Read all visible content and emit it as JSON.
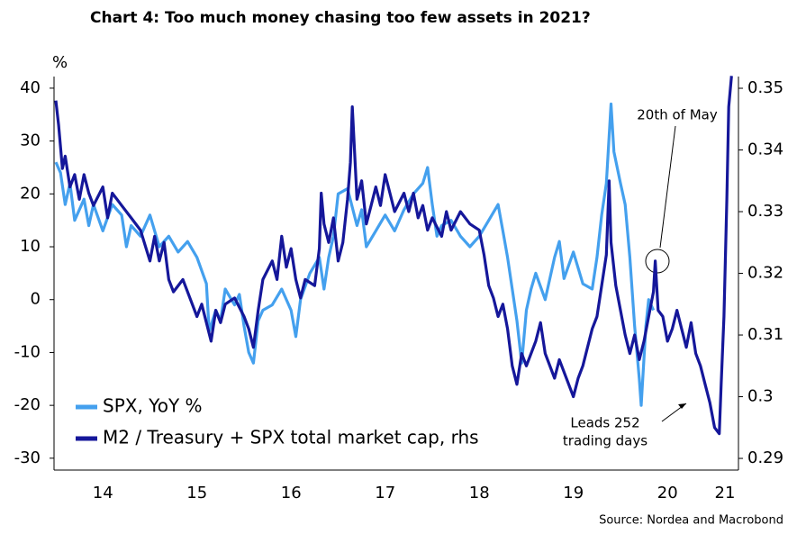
{
  "chart_data": {
    "type": "line",
    "title": "Chart 4: Too much money chasing too few assets in 2021?",
    "y_label": "%",
    "source": "Source: Nordea and Macrobond",
    "annotations": [
      "20th of May",
      "Leads 252",
      "trading days"
    ],
    "legend": "lower left",
    "xlim": [
      14,
      21.25
    ],
    "xticks": [
      {
        "value": 14.5,
        "label": "14"
      },
      {
        "value": 15.5,
        "label": "15"
      },
      {
        "value": 16.5,
        "label": "16"
      },
      {
        "value": 17.5,
        "label": "17"
      },
      {
        "value": 18.5,
        "label": "18"
      },
      {
        "value": 19.5,
        "label": "19"
      },
      {
        "value": 20.5,
        "label": "20"
      },
      {
        "value": 21.11,
        "label": "21"
      }
    ],
    "ylim": [
      -31.9,
      42.2
    ],
    "yticks": [
      -30,
      -20,
      -10,
      0,
      10,
      20,
      30,
      40
    ],
    "y2lim": [
      0.2884,
      0.3519
    ],
    "y2ticks": [
      0.29,
      0.3,
      0.31,
      0.32,
      0.33,
      0.34,
      0.35
    ],
    "series": [
      {
        "name": "SPX, YoY %",
        "color": "#44a0ee",
        "axis": "y",
        "x": [
          14.0,
          14.05,
          14.1,
          14.15,
          14.2,
          14.3,
          14.35,
          14.4,
          14.5,
          14.6,
          14.7,
          14.75,
          14.8,
          14.9,
          15.0,
          15.1,
          15.2,
          15.3,
          15.4,
          15.5,
          15.6,
          15.63,
          15.7,
          15.75,
          15.8,
          15.9,
          15.95,
          16.0,
          16.05,
          16.1,
          16.15,
          16.2,
          16.3,
          16.4,
          16.5,
          16.55,
          16.6,
          16.7,
          16.8,
          16.85,
          16.9,
          16.95,
          17.0,
          17.1,
          17.2,
          17.25,
          17.3,
          17.4,
          17.5,
          17.6,
          17.7,
          17.8,
          17.9,
          17.95,
          18.0,
          18.05,
          18.1,
          18.2,
          18.3,
          18.4,
          18.5,
          18.6,
          18.7,
          18.75,
          18.8,
          18.85,
          18.9,
          18.95,
          19.0,
          19.05,
          19.1,
          19.2,
          19.3,
          19.35,
          19.4,
          19.5,
          19.6,
          19.7,
          19.75,
          19.8,
          19.85,
          19.9,
          19.93,
          20.0,
          20.05,
          20.1,
          20.15,
          20.2,
          20.22,
          20.27,
          20.3,
          20.35
        ],
        "values": [
          26,
          24,
          18,
          22,
          15,
          19,
          14,
          18,
          13,
          18,
          16,
          10,
          14,
          12,
          16,
          10,
          12,
          9,
          11,
          8,
          3,
          -6,
          -2,
          -4,
          2,
          -1,
          1,
          -5,
          -10,
          -12,
          -4,
          -2,
          -1,
          2,
          -2,
          -7,
          0,
          5,
          8,
          2,
          8,
          12,
          20,
          21,
          14,
          17,
          10,
          13,
          16,
          13,
          17,
          20,
          22,
          25,
          18,
          12,
          14,
          15,
          12,
          10,
          12,
          15,
          18,
          13,
          8,
          2,
          -4,
          -12,
          -2,
          2,
          5,
          0,
          8,
          11,
          4,
          9,
          3,
          2,
          8,
          16,
          22,
          37,
          28,
          22,
          18,
          8,
          -5,
          -15,
          -20,
          -5,
          0,
          -2
        ]
      },
      {
        "name": "M2 / Treasury + SPX total market cap, rhs",
        "color": "#15179a",
        "axis": "y2",
        "x": [
          14.0,
          14.03,
          14.07,
          14.1,
          14.15,
          14.2,
          14.25,
          14.3,
          14.35,
          14.4,
          14.5,
          14.55,
          14.6,
          14.7,
          14.8,
          14.9,
          15.0,
          15.05,
          15.1,
          15.15,
          15.2,
          15.25,
          15.35,
          15.45,
          15.5,
          15.55,
          15.6,
          15.65,
          15.7,
          15.75,
          15.8,
          15.9,
          16.0,
          16.05,
          16.1,
          16.15,
          16.2,
          16.3,
          16.35,
          16.4,
          16.45,
          16.5,
          16.55,
          16.6,
          16.65,
          16.75,
          16.8,
          16.82,
          16.85,
          16.9,
          16.95,
          17.0,
          17.05,
          17.1,
          17.13,
          17.15,
          17.2,
          17.25,
          17.3,
          17.35,
          17.4,
          17.45,
          17.5,
          17.55,
          17.6,
          17.7,
          17.75,
          17.8,
          17.85,
          17.9,
          17.95,
          18.0,
          18.1,
          18.15,
          18.2,
          18.3,
          18.4,
          18.5,
          18.55,
          18.6,
          18.65,
          18.7,
          18.75,
          18.8,
          18.85,
          18.9,
          18.95,
          19.0,
          19.1,
          19.15,
          19.2,
          19.3,
          19.35,
          19.45,
          19.5,
          19.55,
          19.6,
          19.65,
          19.7,
          19.75,
          19.8,
          19.85,
          19.88,
          19.9,
          19.95,
          20.0,
          20.05,
          20.1,
          20.15,
          20.2,
          20.25,
          20.3,
          20.35,
          20.37,
          20.4,
          20.45,
          20.5,
          20.55,
          20.6,
          20.65,
          20.7,
          20.75,
          20.8,
          20.85,
          20.9,
          20.95,
          21.0,
          21.05,
          21.07,
          21.1,
          21.13,
          21.15,
          21.18
        ],
        "values": [
          0.348,
          0.344,
          0.337,
          0.339,
          0.334,
          0.336,
          0.332,
          0.336,
          0.333,
          0.331,
          0.334,
          0.329,
          0.333,
          0.331,
          0.329,
          0.327,
          0.322,
          0.326,
          0.322,
          0.325,
          0.319,
          0.317,
          0.319,
          0.315,
          0.313,
          0.315,
          0.312,
          0.309,
          0.314,
          0.312,
          0.315,
          0.316,
          0.313,
          0.311,
          0.308,
          0.314,
          0.319,
          0.322,
          0.319,
          0.326,
          0.321,
          0.324,
          0.319,
          0.316,
          0.319,
          0.318,
          0.324,
          0.333,
          0.328,
          0.325,
          0.329,
          0.322,
          0.325,
          0.332,
          0.338,
          0.347,
          0.332,
          0.335,
          0.328,
          0.331,
          0.334,
          0.331,
          0.336,
          0.333,
          0.33,
          0.333,
          0.33,
          0.333,
          0.329,
          0.331,
          0.327,
          0.329,
          0.326,
          0.33,
          0.327,
          0.33,
          0.328,
          0.327,
          0.323,
          0.318,
          0.316,
          0.313,
          0.315,
          0.311,
          0.305,
          0.302,
          0.307,
          0.305,
          0.309,
          0.312,
          0.307,
          0.303,
          0.306,
          0.302,
          0.3,
          0.303,
          0.305,
          0.308,
          0.311,
          0.313,
          0.318,
          0.323,
          0.335,
          0.325,
          0.318,
          0.314,
          0.31,
          0.307,
          0.31,
          0.306,
          0.309,
          0.313,
          0.317,
          0.322,
          0.314,
          0.313,
          0.309,
          0.311,
          0.314,
          0.311,
          0.308,
          0.312,
          0.307,
          0.305,
          0.302,
          0.299,
          0.295,
          0.294,
          0.302,
          0.313,
          0.332,
          0.347,
          0.352
        ]
      }
    ]
  }
}
